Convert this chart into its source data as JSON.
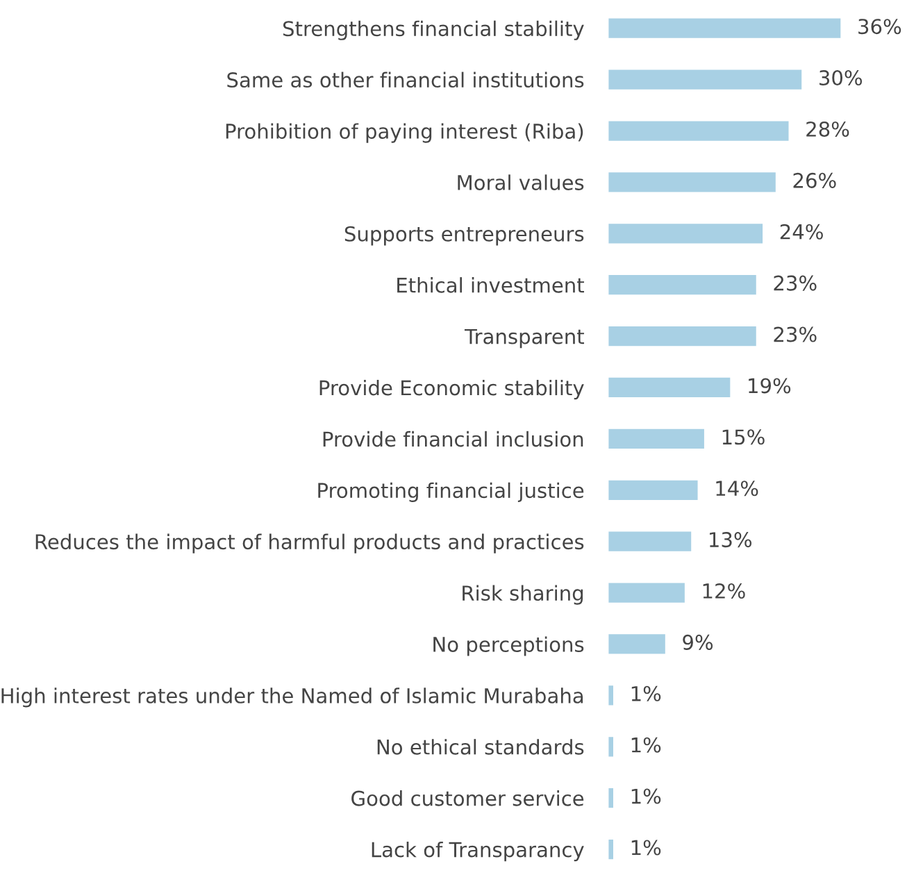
{
  "chart_data": {
    "type": "bar",
    "orientation": "horizontal",
    "tick_labels": "y",
    "grid": false,
    "legend": false,
    "color": "#a8d0e4",
    "categories": [
      "Strengthens financial stability",
      "Same as other financial institutions",
      "Prohibition of paying interest (Riba)",
      "Moral values",
      "Supports entrepreneurs",
      "Ethical investment",
      "Transparent",
      "Provide Economic stability",
      "Provide financial inclusion",
      "Promoting financial justice",
      "Reduces the impact of harmful products and practices",
      "Risk sharing",
      "No perceptions",
      "High interest rates under the Named of Islamic Murabaha",
      "No ethical standards",
      "Good customer service",
      "Lack of Transparancy"
    ],
    "values": [
      36,
      30,
      28,
      26,
      24,
      23,
      23,
      19,
      15,
      14,
      13,
      12,
      9,
      1,
      1,
      1,
      1
    ],
    "value_labels": [
      "36%",
      "30%",
      "28%",
      "26%",
      "24%",
      "23%",
      "23%",
      "19%",
      "15%",
      "14%",
      "13%",
      "12%",
      "9%",
      "1%",
      "1%",
      "1%",
      "1%"
    ]
  }
}
